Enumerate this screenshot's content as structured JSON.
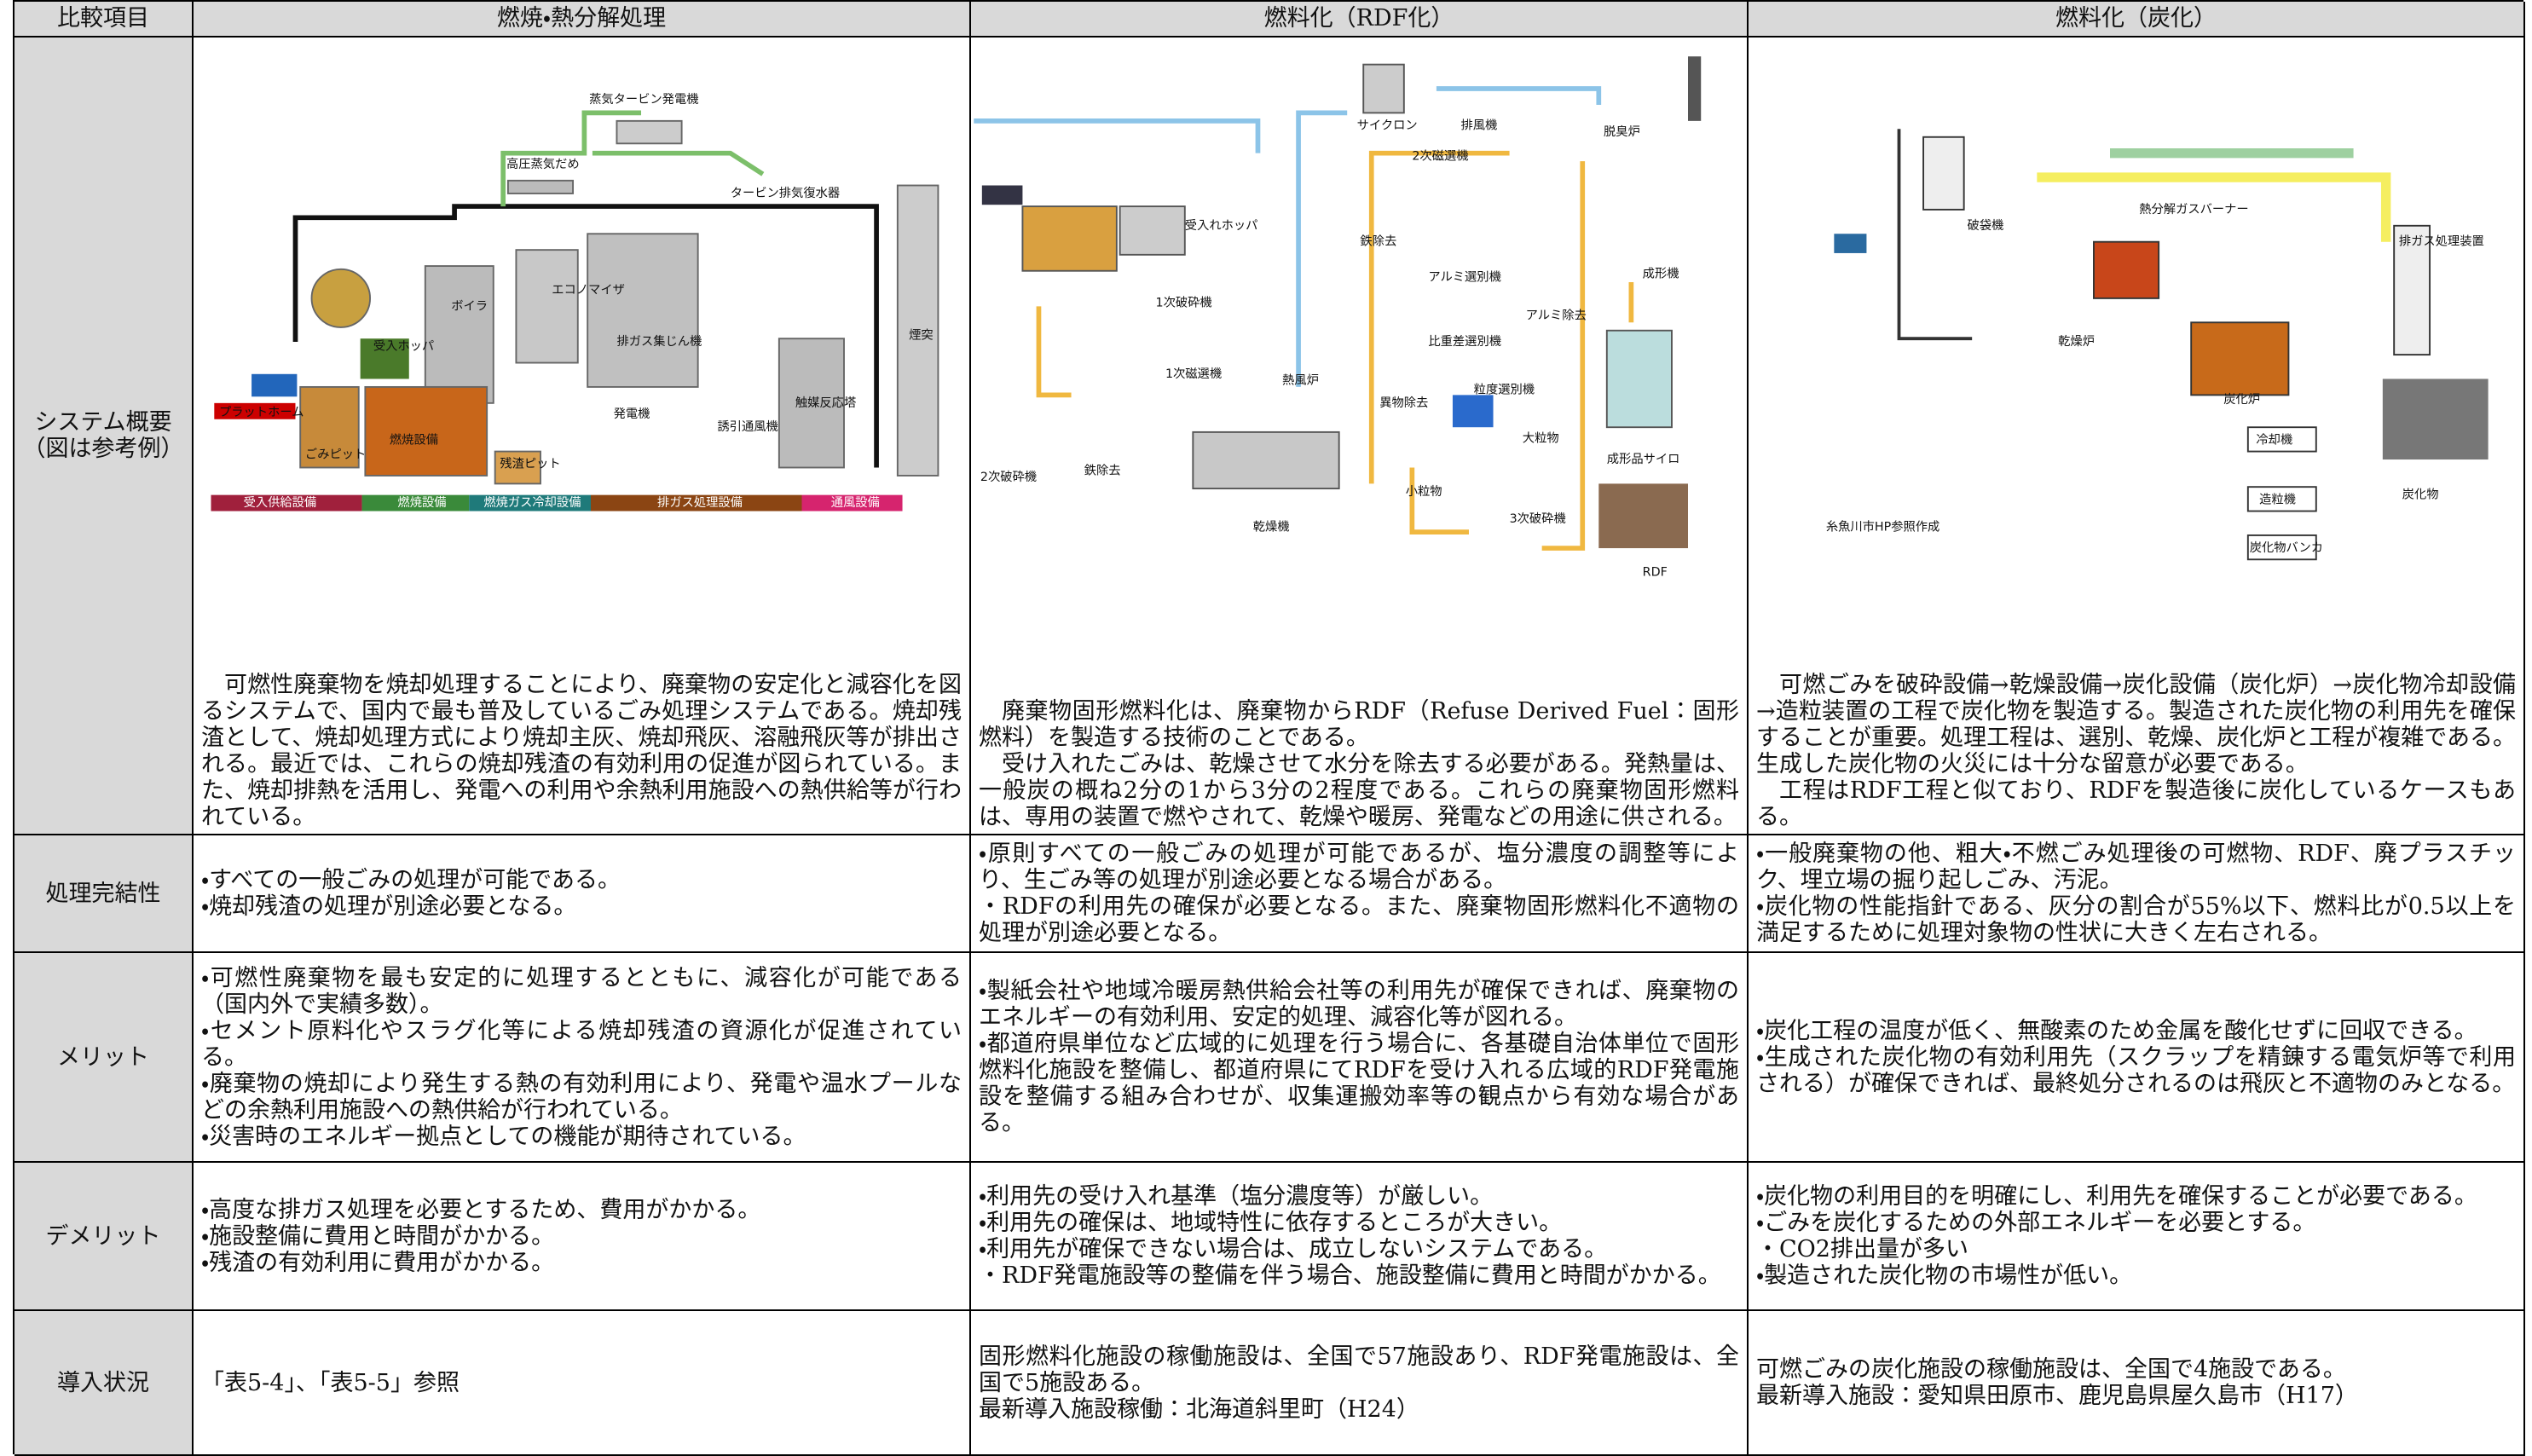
{
  "table": {
    "header": [
      "比較項目",
      "燃焼・熱分解処理",
      "燃料化（RDF化）",
      "燃料化（炭化）"
    ],
    "rows": [
      {
        "label": [
          "システム概要",
          "（図は参考例）"
        ],
        "cells": [
          [
            "可燃性廃棄物を焼却処理することにより、廃棄物の安定化と減容化を図るシステムで、国内で最も普及しているごみ処理システムである。焼却残渣として、焼却処理方式により焼却主灰、焼却飛灰、溶融飛灰等が排出される。最近では、これらの焼却残渣の有効利用の促進が図られている。また、焼却排熱を活用し、発電への利用や余熱利用施設への熱供給等が行われている。"
          ],
          [
            "廃棄物固形燃料化は、廃棄物からRDF（Refuse Derived Fuel：固形燃料）を製造する技術のことである。",
            "受け入れたごみは、乾燥させて水分を除去する必要がある。発熱量は、一般炭の概ね2分の1から3分の2程度である。これらの廃棄物固形燃料は、専用の装置で燃やされて、乾燥や暖房、発電などの用途に供される。"
          ],
          [
            "可燃ごみを破砕設備→乾燥設備→炭化設備（炭化炉）→炭化物冷却設備→造粒装置の工程で炭化物を製造する。製造された炭化物の利用先を確保することが重要。処理工程は、選別、乾燥、炭化炉と工程が複雑である。生成した炭化物の火災には十分な留意が必要である。",
            "工程はRDF工程と似ており、RDFを製造後に炭化しているケースもある。"
          ]
        ]
      },
      {
        "label": [
          "処理完結性"
        ],
        "cells": [
          [
            "・すべての一般ごみの処理が可能である。",
            "・焼却残渣の処理が別途必要となる。"
          ],
          [
            "・原則すべての一般ごみの処理が可能であるが、塩分濃度の調整等により、生ごみ等の処理が別途必要となる場合がある。",
            "・RDFの利用先の確保が必要となる。また、廃棄物固形燃料化不適物の処理が別途必要となる。"
          ],
          [
            "・一般廃棄物の他、粗大・不燃ごみ処理後の可燃物、RDF、廃プラスチック、埋立場の掘り起しごみ、汚泥。",
            "・炭化物の性能指針である、灰分の割合が55%以下、燃料比が0.5以上を満足するために処理対象物の性状に大きく左右される。"
          ]
        ]
      },
      {
        "label": [
          "メリット"
        ],
        "cells": [
          [
            "・可燃性廃棄物を最も安定的に処理するとともに、減容化が可能である（国内外で実績多数）。",
            "・セメント原料化やスラグ化等による焼却残渣の資源化が促進されている。",
            "・廃棄物の焼却により発生する熱の有効利用により、発電や温水プールなどの余熱利用施設への熱供給が行われている。",
            "・災害時のエネルギー拠点としての機能が期待されている。"
          ],
          [
            "・製紙会社や地域冷暖房熱供給会社等の利用先が確保できれば、廃棄物のエネルギーの有効利用、安定的処理、減容化等が図れる。",
            "・都道府県単位など広域的に処理を行う場合に、各基礎自治体単位で固形燃料化施設を整備し、都道府県にてRDFを受け入れる広域的RDF発電施設を整備する組み合わせが、収集運搬効率等の観点から有効な場合がある。"
          ],
          [
            "・炭化工程の温度が低く、無酸素のため金属を酸化せずに回収できる。",
            "・生成された炭化物の有効利用先（スクラップを精錬する電気炉等で利用される）が確保できれば、最終処分されるのは飛灰と不適物のみとなる。"
          ]
        ]
      },
      {
        "label": [
          "デメリット"
        ],
        "cells": [
          [
            "・高度な排ガス処理を必要とするため、費用がかかる。",
            "・施設整備に費用と時間がかかる。",
            "・残渣の有効利用に費用がかかる。"
          ],
          [
            "・利用先の受け入れ基準（塩分濃度等）が厳しい。",
            "・利用先の確保は、地域特性に依存するところが大きい。",
            "・利用先が確保できない場合は、成立しないシステムである。",
            "・RDF発電施設等の整備を伴う場合、施設整備に費用と時間がかかる。"
          ],
          [
            "・炭化物の利用目的を明確にし、利用先を確保することが必要である。",
            "・ごみを炭化するための外部エネルギーを必要とする。",
            "・CO2排出量が多い",
            "・製造された炭化物の市場性が低い。"
          ]
        ]
      },
      {
        "label": [
          "導入状況"
        ],
        "cells": [
          [
            "「表5-4」、「表5-5」参照"
          ],
          [
            "固形燃料化施設の稼働施設は、全国で57施設あり、RDF発電施設は、全国で5施設ある。",
            "最新導入施設稼働：北海道斜里町（H24）"
          ],
          [
            "可燃ごみの炭化施設の稼働施設は、全国で4施設である。",
            "最新導入施設：愛知県田原市、鹿児島県屋久島市（H17）"
          ]
        ]
      }
    ]
  },
  "diagrams": [
    {
      "labels": [
        "蒸気タービン発電機",
        "高圧蒸気だめ",
        "タービン排気復水器",
        "ボイラ",
        "エコノマイザ",
        "排ガス集じん機",
        "受入ホッパ",
        "ごみピット",
        "燃焼設備",
        "残渣ピット",
        "発電機",
        "誘引通風機",
        "触媒反応塔",
        "煙突",
        "プラットホーム",
        "受入供給設備",
        "燃焼設備",
        "燃焼ガス冷却設備",
        "排ガス処理設備",
        "通風設備"
      ]
    },
    {
      "labels": [
        "サイクロン",
        "排風機",
        "脱臭炉",
        "受入れホッパ",
        "1次破砕機",
        "2次磁選機",
        "鉄除去",
        "アルミ選別機",
        "アルミ除去",
        "成形機",
        "比重差選別機",
        "異物除去",
        "粒度選別機",
        "1次磁選機",
        "熱風炉",
        "2次破砕機",
        "鉄除去",
        "乾燥機",
        "大粒物",
        "小粒物",
        "3次破砕機",
        "成形品サイロ",
        "RDF"
      ]
    },
    {
      "labels": [
        "破袋機",
        "熱分解ガスバーナー",
        "排ガス処理装置",
        "乾燥炉",
        "炭化炉",
        "冷却機",
        "造粒機",
        "炭化物バンカ",
        "炭化物",
        "糸魚川市HP参照作成"
      ]
    }
  ]
}
